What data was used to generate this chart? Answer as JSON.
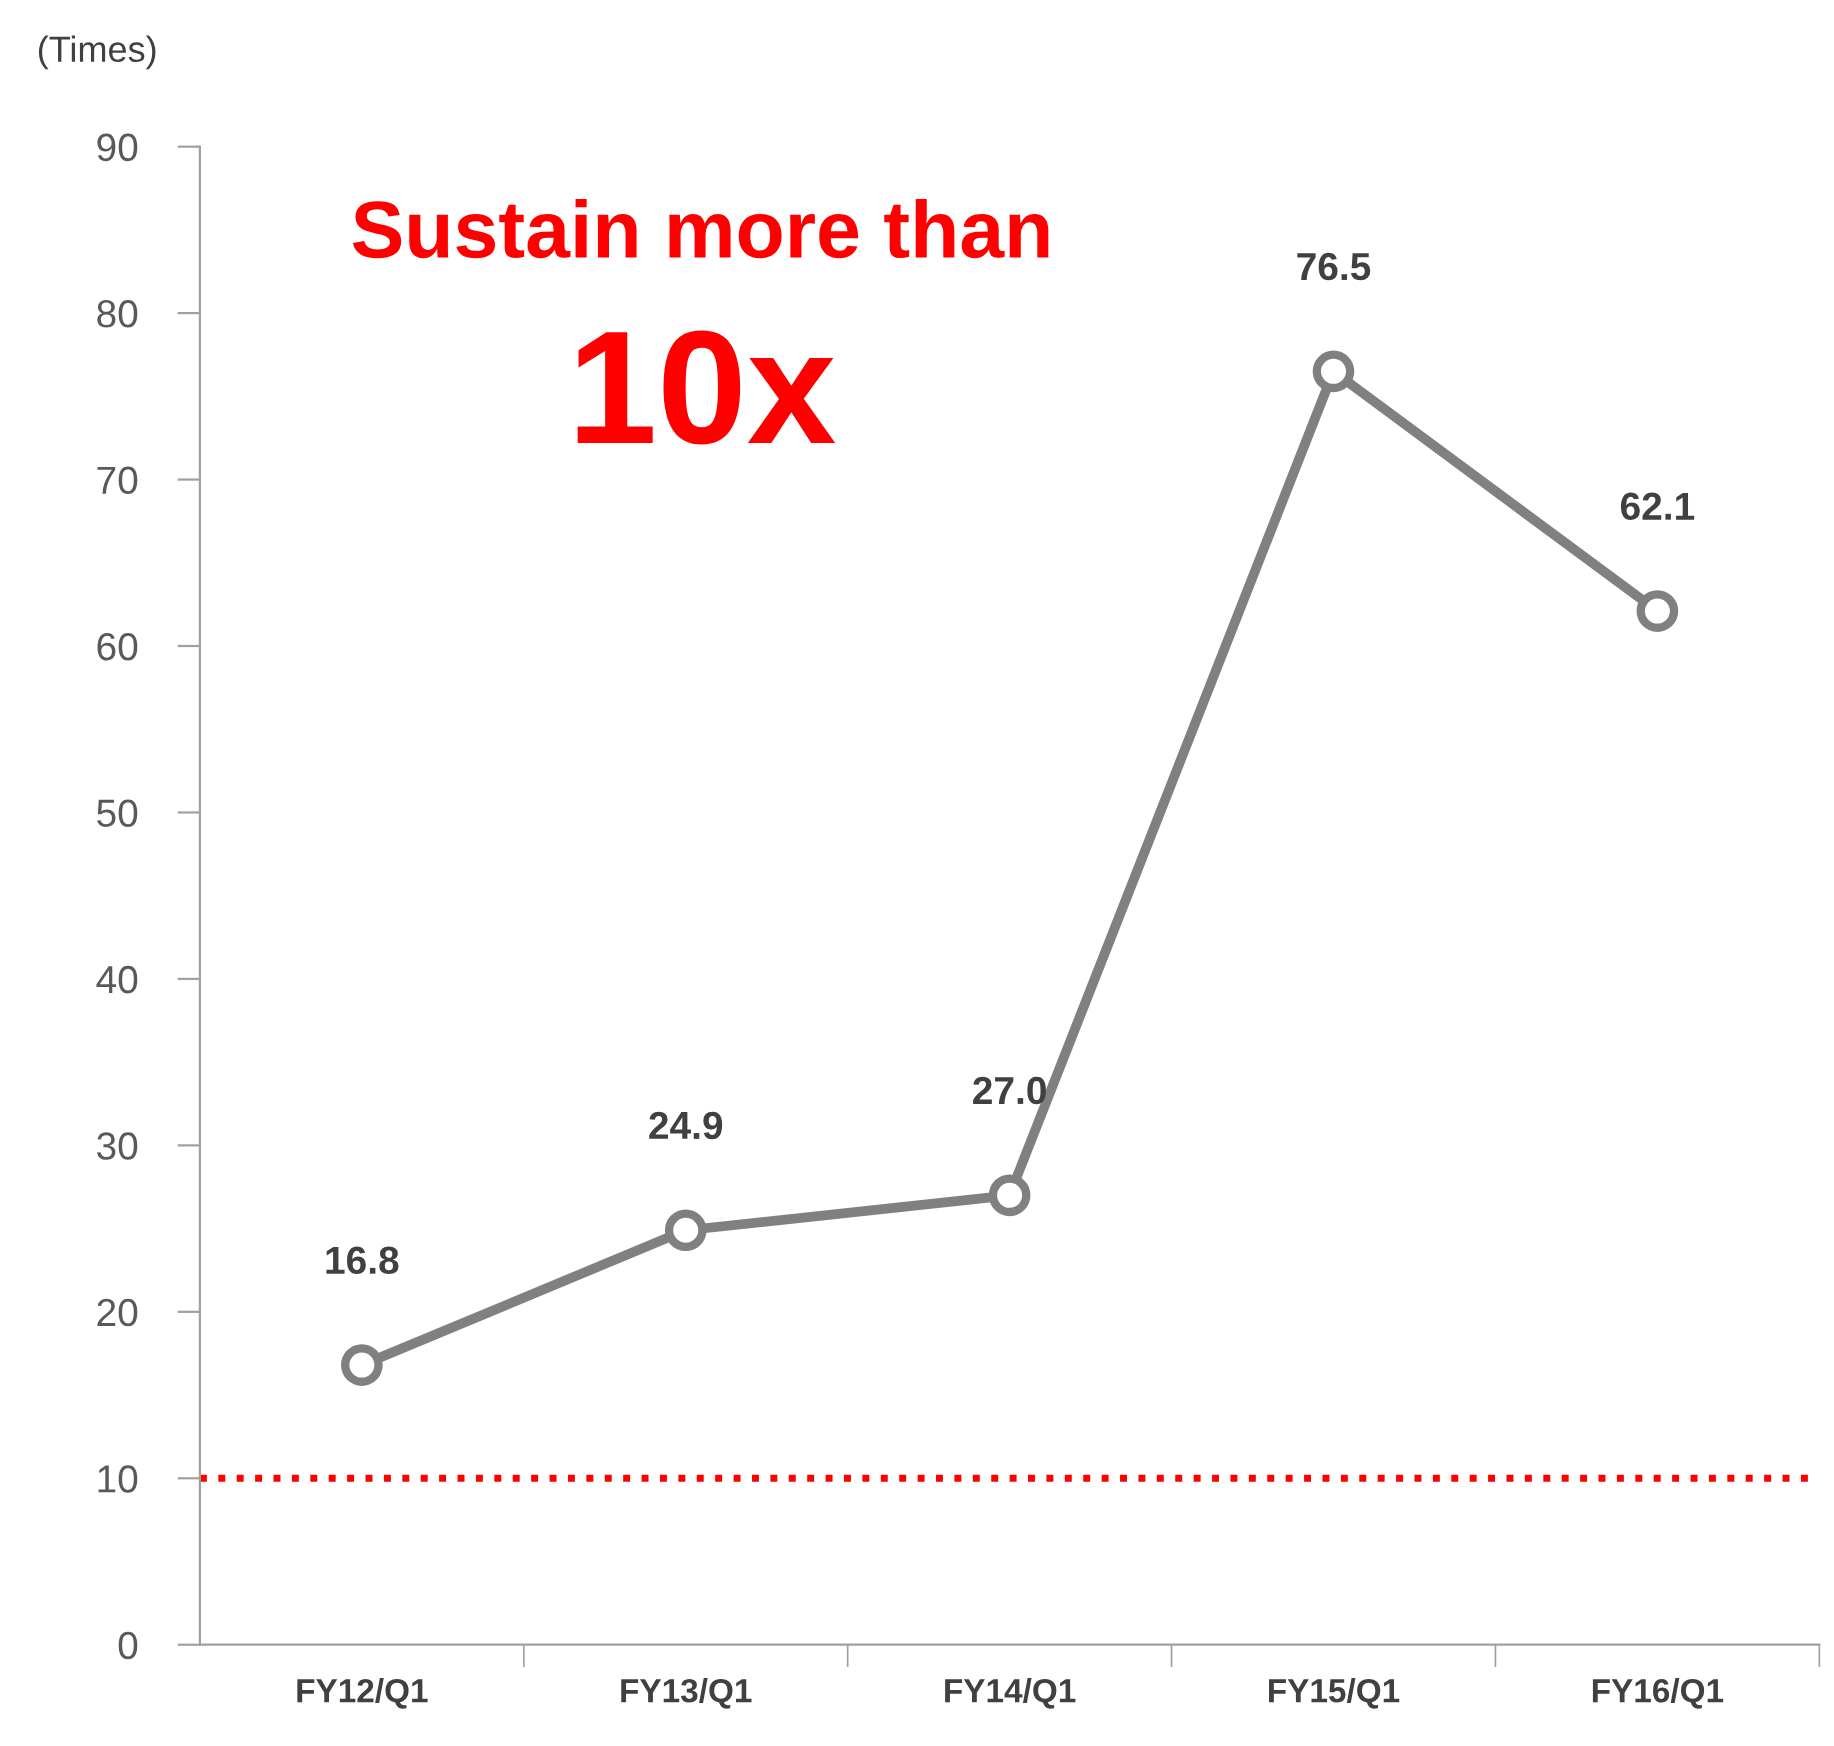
{
  "chart_data": {
    "type": "line",
    "ylabel": "(Times)",
    "categories": [
      "FY12/Q1",
      "FY13/Q1",
      "FY14/Q1",
      "FY15/Q1",
      "FY16/Q1"
    ],
    "series": [
      {
        "color": "#808080",
        "values": [
          16.8,
          24.9,
          27.0,
          76.5,
          62.1
        ],
        "value_labels": [
          "16.8",
          "24.9",
          "27.0",
          "76.5",
          "62.1"
        ]
      }
    ],
    "ylim": [
      0,
      90
    ],
    "yticks": [
      0,
      10,
      20,
      30,
      40,
      50,
      60,
      70,
      80,
      90
    ],
    "marker": "circle",
    "line_style": "solid",
    "grid": false,
    "legend": false,
    "ref_lines": [
      {
        "axis": "y",
        "value": 10,
        "color": "#ff0000",
        "line_style": "dotted"
      }
    ],
    "annotations": [
      "Sustain more than",
      "10x"
    ]
  }
}
